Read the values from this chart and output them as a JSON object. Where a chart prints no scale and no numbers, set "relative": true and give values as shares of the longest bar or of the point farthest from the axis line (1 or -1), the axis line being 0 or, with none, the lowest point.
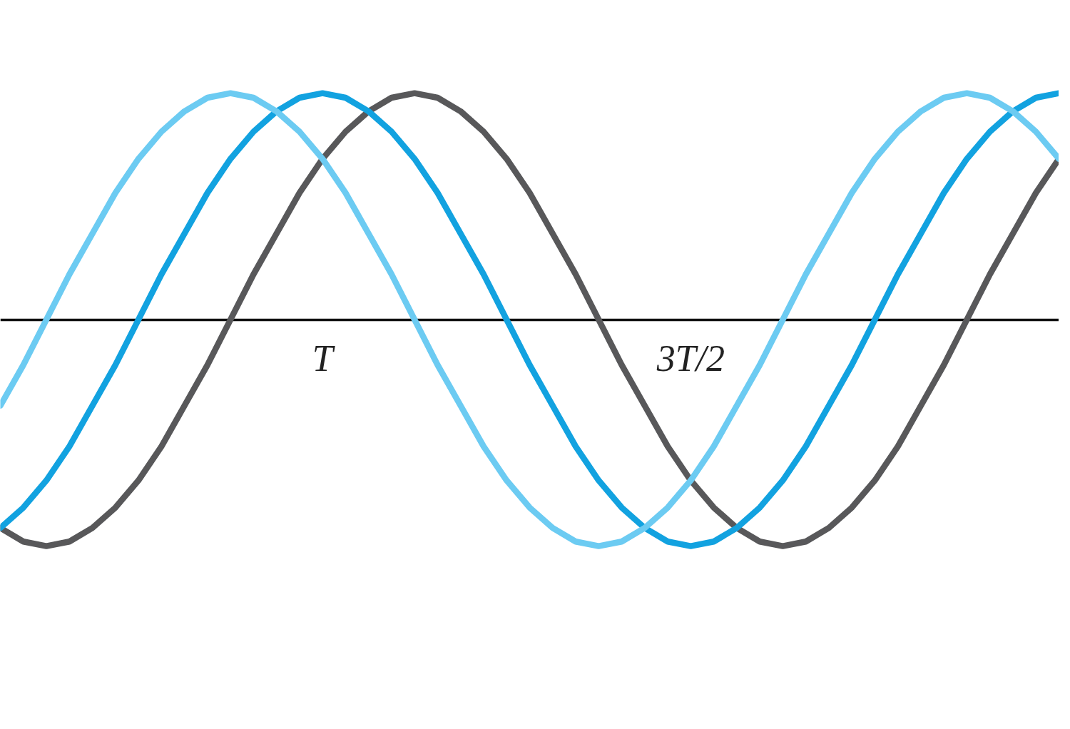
{
  "chart_data": {
    "type": "line",
    "relative": true,
    "tick_labels": "x",
    "grid": false,
    "line_style": "solid",
    "categories": [
      null,
      null,
      null,
      null,
      null,
      null,
      null,
      null,
      null,
      null,
      null,
      null,
      null,
      null,
      "T",
      null,
      null,
      null,
      null,
      null,
      null,
      null,
      null,
      null,
      null,
      null,
      null,
      null,
      null,
      null,
      "3T/2",
      null,
      null,
      null,
      null,
      null,
      null,
      null,
      null,
      null,
      null,
      null,
      null,
      null,
      null,
      null,
      null
    ],
    "series": [
      {
        "color": "#58585a",
        "values": [
          -0.92,
          -0.98,
          -1,
          -0.98,
          -0.92,
          -0.83,
          -0.71,
          -0.56,
          -0.38,
          -0.2,
          0,
          0.2,
          0.38,
          0.56,
          0.71,
          0.83,
          0.92,
          0.98,
          1,
          0.98,
          0.92,
          0.83,
          0.71,
          0.56,
          0.38,
          0.2,
          0,
          -0.2,
          -0.38,
          -0.56,
          -0.71,
          -0.83,
          -0.92,
          -0.98,
          -1,
          -0.98,
          -0.92,
          -0.83,
          -0.71,
          -0.56,
          -0.38,
          -0.2,
          0,
          0.2,
          0.38,
          0.56,
          0.71
        ]
      },
      {
        "color": "#12a2e0",
        "values": [
          -0.92,
          -0.83,
          -0.71,
          -0.56,
          -0.38,
          -0.2,
          0,
          0.2,
          0.38,
          0.56,
          0.71,
          0.83,
          0.92,
          0.98,
          1,
          0.98,
          0.92,
          0.83,
          0.71,
          0.56,
          0.38,
          0.2,
          0,
          -0.2,
          -0.38,
          -0.56,
          -0.71,
          -0.83,
          -0.92,
          -0.98,
          -1,
          -0.98,
          -0.92,
          -0.83,
          -0.71,
          -0.56,
          -0.38,
          -0.2,
          0,
          0.2,
          0.38,
          0.56,
          0.71,
          0.83,
          0.92,
          0.98,
          1
        ]
      },
      {
        "color": "#6ccbf2",
        "values": [
          -0.38,
          -0.2,
          0,
          0.2,
          0.38,
          0.56,
          0.71,
          0.83,
          0.92,
          0.98,
          1,
          0.98,
          0.92,
          0.83,
          0.71,
          0.56,
          0.38,
          0.2,
          0,
          -0.2,
          -0.38,
          -0.56,
          -0.71,
          -0.83,
          -0.92,
          -0.98,
          -1,
          -0.98,
          -0.92,
          -0.83,
          -0.71,
          -0.56,
          -0.38,
          -0.2,
          0,
          0.2,
          0.38,
          0.56,
          0.71,
          0.83,
          0.92,
          0.98,
          1,
          0.98,
          0.92,
          0.83,
          0.71
        ]
      }
    ]
  }
}
